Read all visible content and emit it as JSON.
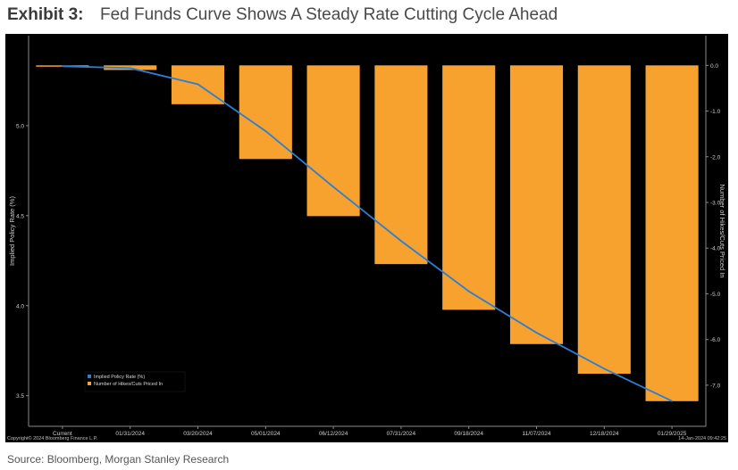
{
  "header": {
    "exhibit_label": "Exhibit 3:",
    "title": "Fed Funds Curve Shows A Steady Rate Cutting Cycle Ahead"
  },
  "footer": {
    "source": "Source: Bloomberg, Morgan Stanley Research"
  },
  "chart_data": {
    "type": "bar+line",
    "background": "#000000",
    "categories": [
      "Current",
      "01/31/2024",
      "03/20/2024",
      "05/01/2024",
      "06/12/2024",
      "07/31/2024",
      "09/18/2024",
      "11/07/2024",
      "12/18/2024",
      "01/29/2025"
    ],
    "series": [
      {
        "name": "Implied Policy Rate (%)",
        "type": "line",
        "axis": "left",
        "color": "#2a7fd4",
        "values": [
          5.33,
          5.32,
          5.23,
          4.97,
          4.66,
          4.36,
          4.08,
          3.85,
          3.65,
          3.47
        ]
      },
      {
        "name": "Number of Hikes/Cuts Priced In",
        "type": "bar",
        "axis": "right",
        "color": "#f7a12f",
        "values": [
          0.0,
          -0.1,
          -0.85,
          -2.05,
          -3.3,
          -4.35,
          -5.35,
          -6.1,
          -6.75,
          -7.35
        ]
      }
    ],
    "y_left": {
      "label": "Implied Policy Rate (%)",
      "ticks": [
        "5.0",
        "4.5",
        "4.0",
        "3.5"
      ],
      "tick_values": [
        5.0,
        4.5,
        4.0,
        3.5
      ],
      "range": [
        3.33,
        5.5
      ]
    },
    "y_right": {
      "label": "Number of Hikes/Cuts Priced In",
      "ticks": [
        "0.0",
        "-1.0",
        "-2.0",
        "-3.0",
        "-4.0",
        "-5.0",
        "-6.0",
        "-7.0"
      ],
      "tick_values": [
        0,
        -1,
        -2,
        -3,
        -4,
        -5,
        -6,
        -7
      ],
      "range": [
        -7.9,
        0.65
      ]
    },
    "legend_position": "bottom-left",
    "copyright": "Copyright© 2024 Bloomberg Finance L.P.",
    "timestamp": "14-Jan-2024 09:42:25"
  }
}
